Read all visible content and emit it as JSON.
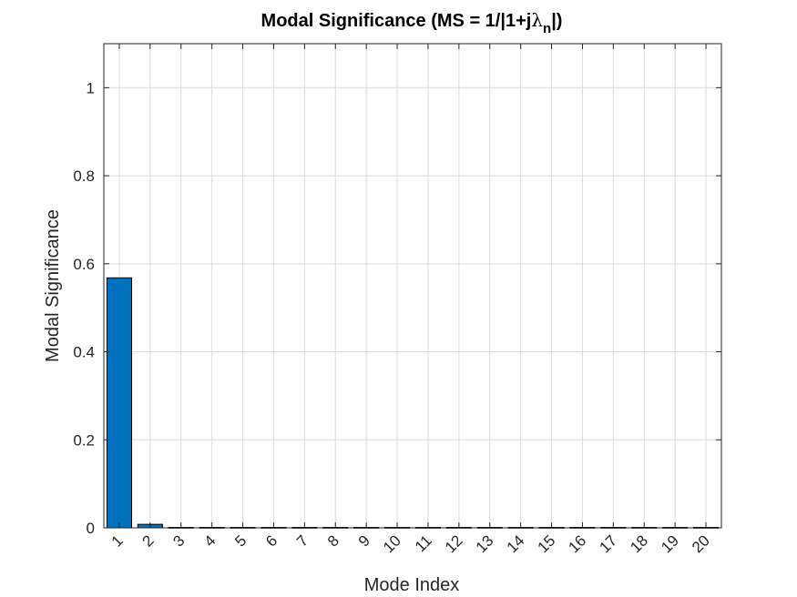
{
  "chart_data": {
    "type": "bar",
    "title": "Modal Significance (MS = 1/|1+jλn|)",
    "title_parts": {
      "main": "Modal Significance (MS = 1/|1+j",
      "symbol": "λ",
      "subscript": "n",
      "close": "|)"
    },
    "xlabel": "Mode Index",
    "ylabel": "Modal Significance",
    "categories": [
      "1",
      "2",
      "3",
      "4",
      "5",
      "6",
      "7",
      "8",
      "9",
      "10",
      "11",
      "12",
      "13",
      "14",
      "15",
      "16",
      "17",
      "18",
      "19",
      "20"
    ],
    "values": [
      0.568,
      0.008,
      0.001,
      0.001,
      0.001,
      0.001,
      0.001,
      0.001,
      0.001,
      0.001,
      0.001,
      0.001,
      0.001,
      0.001,
      0.001,
      0.001,
      0.001,
      0.001,
      0.001,
      0.001
    ],
    "ylim": [
      0,
      1.1
    ],
    "yticks": [
      0,
      0.2,
      0.4,
      0.6,
      0.8,
      1
    ],
    "ytick_labels": [
      "0",
      "0.2",
      "0.4",
      "0.6",
      "0.8",
      "1"
    ],
    "grid": true,
    "bar_color": "#0072BD",
    "edge_color": "#000000",
    "grid_color": "#dcdcdc",
    "axis_color": "#262626"
  }
}
